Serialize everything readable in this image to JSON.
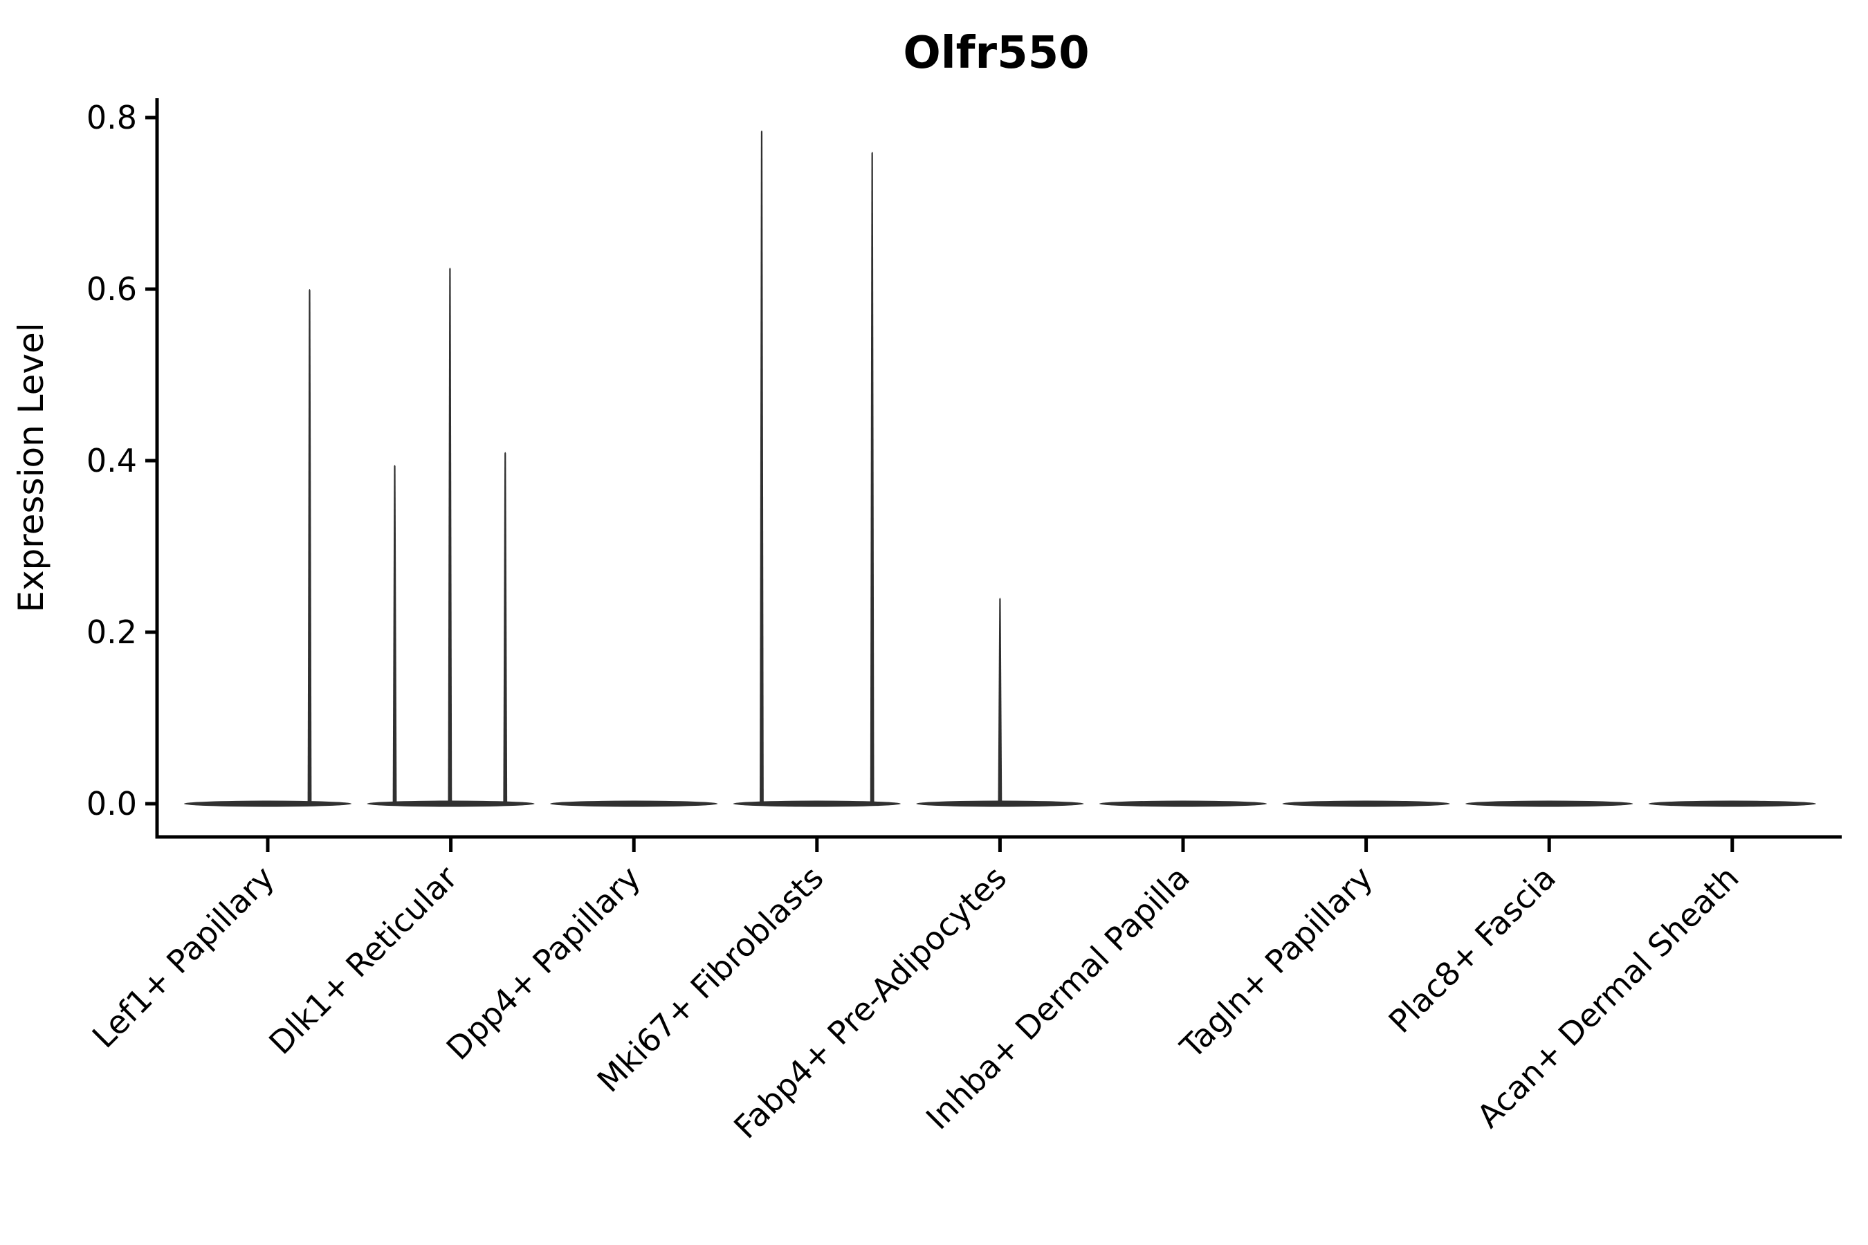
{
  "chart_data": {
    "type": "violin",
    "title": "Olfr550",
    "xlabel": "",
    "ylabel": "Expression Level",
    "ylim": [
      0,
      0.8
    ],
    "yticks": [
      "0.0",
      "0.2",
      "0.4",
      "0.6",
      "0.8"
    ],
    "ytick_values": [
      0.0,
      0.2,
      0.4,
      0.6,
      0.8
    ],
    "grid": false,
    "legend": "none",
    "violin_color": "#303030",
    "axis_color": "#000000",
    "categories": [
      "Lef1+ Papillary",
      "Dlk1+ Reticular",
      "Dpp4+ Papillary",
      "Mki67+ Fibroblasts",
      "Fabp4+ Pre-Adipocytes",
      "Inhba+ Dermal Papilla",
      "Tagln+ Papillary",
      "Plac8+ Fascia",
      "Acan+ Dermal Sheath"
    ],
    "violins": [
      {
        "category": "Lef1+ Papillary",
        "body_value": 0.0,
        "spikes": [
          {
            "value": 0.6,
            "offset_frac": 0.5
          }
        ]
      },
      {
        "category": "Dlk1+ Reticular",
        "body_value": 0.0,
        "spikes": [
          {
            "value": 0.395,
            "offset_frac": -0.67
          },
          {
            "value": 0.625,
            "offset_frac": -0.01
          },
          {
            "value": 0.41,
            "offset_frac": 0.65
          }
        ]
      },
      {
        "category": "Dpp4+ Papillary",
        "body_value": 0.0,
        "spikes": []
      },
      {
        "category": "Mki67+ Fibroblasts",
        "body_value": 0.0,
        "spikes": [
          {
            "value": 0.785,
            "offset_frac": -0.66
          },
          {
            "value": 0.76,
            "offset_frac": 0.66
          }
        ]
      },
      {
        "category": "Fabp4+ Pre-Adipocytes",
        "body_value": 0.0,
        "spikes": [
          {
            "value": 0.24,
            "offset_frac": 0.0
          }
        ]
      },
      {
        "category": "Inhba+ Dermal Papilla",
        "body_value": 0.0,
        "spikes": []
      },
      {
        "category": "Tagln+ Papillary",
        "body_value": 0.0,
        "spikes": []
      },
      {
        "category": "Plac8+ Fascia",
        "body_value": 0.0,
        "spikes": []
      },
      {
        "category": "Acan+ Dermal Sheath",
        "body_value": 0.0,
        "spikes": []
      }
    ]
  }
}
